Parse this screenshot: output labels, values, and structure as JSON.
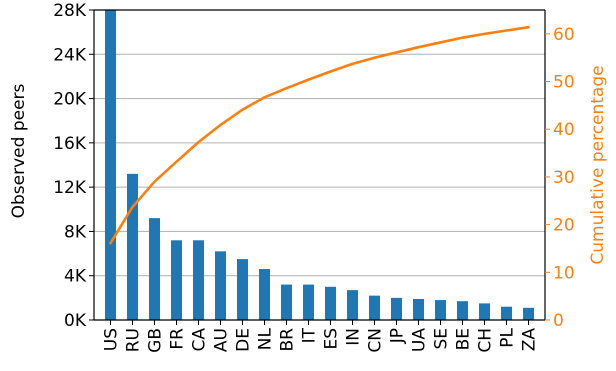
{
  "chart_data": {
    "type": "bar",
    "categories": [
      "US",
      "RU",
      "GB",
      "FR",
      "CA",
      "AU",
      "DE",
      "NL",
      "BR",
      "IT",
      "ES",
      "IN",
      "CN",
      "JP",
      "UA",
      "SE",
      "BE",
      "CH",
      "PL",
      "ZA"
    ],
    "series": [
      {
        "axis": "left",
        "type": "bar",
        "values": [
          28000,
          13200,
          9200,
          7200,
          7200,
          6200,
          5500,
          4600,
          3200,
          3200,
          3000,
          2700,
          2200,
          2000,
          1900,
          1800,
          1700,
          1500,
          1200,
          1100
        ],
        "color": "#1f77b4"
      },
      {
        "axis": "right",
        "type": "line",
        "values": [
          16.1,
          23.7,
          29.0,
          33.2,
          37.3,
          40.9,
          44.1,
          46.7,
          48.6,
          50.4,
          52.1,
          53.7,
          55.0,
          56.1,
          57.2,
          58.2,
          59.2,
          60.0,
          60.7,
          61.4
        ],
        "color": "#ff7f0e"
      }
    ],
    "ylabel": "Observed peers",
    "y2label": "Cumulative percentage",
    "ylim": [
      0,
      28000
    ],
    "y2lim": [
      0,
      65
    ],
    "yticks": [
      0,
      4000,
      8000,
      12000,
      16000,
      20000,
      24000,
      28000
    ],
    "yticklabels": [
      "0K",
      "4K",
      "8K",
      "12K",
      "16K",
      "20K",
      "24K",
      "28K"
    ],
    "y2ticks": [
      0,
      10,
      20,
      30,
      40,
      50,
      60
    ],
    "y2ticklabels": [
      "0",
      "10",
      "20",
      "30",
      "40",
      "50",
      "60"
    ],
    "grid": "horizontal",
    "left_axis_color": "#000000",
    "right_axis_color": "#ff7f0e",
    "grid_color": "#b0b0b0"
  }
}
